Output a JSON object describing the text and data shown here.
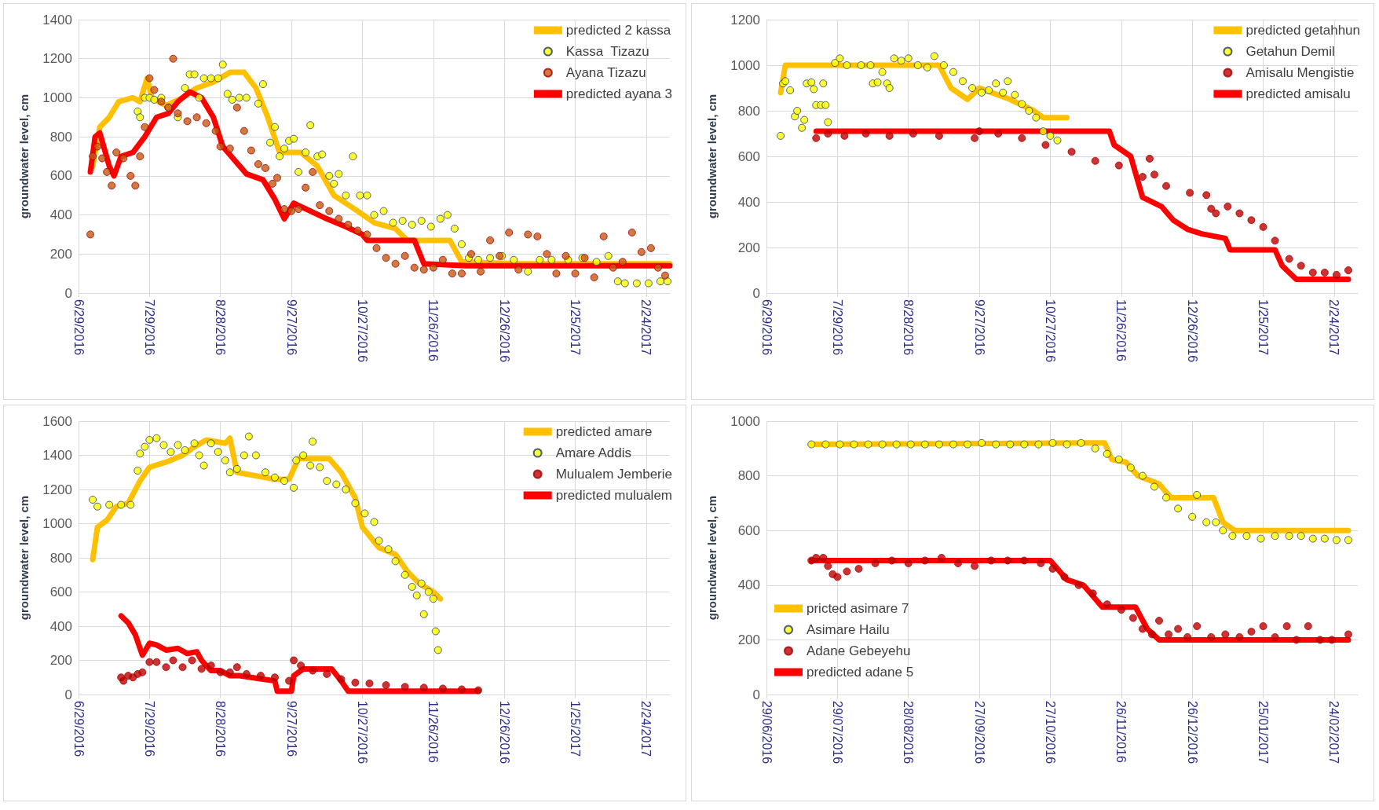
{
  "chart_data": [
    {
      "type": "scatter",
      "ylabel": "groundwater level, cm",
      "xlim": [
        "2016-06-29",
        "2017-03-06"
      ],
      "xticks": [
        {
          "value": "2016-06-29",
          "label": "6/29/2016"
        },
        {
          "value": "2016-07-29",
          "label": "7/29/2016"
        },
        {
          "value": "2016-08-28",
          "label": "8/28/2016"
        },
        {
          "value": "2016-09-27",
          "label": "9/27/2016"
        },
        {
          "value": "2016-10-27",
          "label": "10/27/2016"
        },
        {
          "value": "2016-11-26",
          "label": "11/26/2016"
        },
        {
          "value": "2016-12-26",
          "label": "12/26/2016"
        },
        {
          "value": "2017-01-25",
          "label": "1/25/2017"
        },
        {
          "value": "2017-02-24",
          "label": "2/24/2017"
        }
      ],
      "ylim": [
        0,
        1400
      ],
      "yticks": [
        0,
        200,
        400,
        600,
        800,
        1000,
        1200,
        1400
      ],
      "grid": true,
      "legend": "top right",
      "series": [
        {
          "name": "predicted 2 kassa",
          "type": "line",
          "marker": "none",
          "color": "#ffc000",
          "x": [
            "2016-07-05",
            "2016-07-08",
            "2016-07-12",
            "2016-07-16",
            "2016-07-22",
            "2016-07-25",
            "2016-07-28",
            "2016-07-30",
            "2016-08-05",
            "2016-08-12",
            "2016-08-18",
            "2016-08-25",
            "2016-09-01",
            "2016-09-07",
            "2016-09-12",
            "2016-09-17",
            "2016-09-22",
            "2016-10-01",
            "2016-10-08",
            "2016-10-15",
            "2016-10-25",
            "2016-11-01",
            "2016-11-10",
            "2016-11-15",
            "2016-12-03",
            "2016-12-08",
            "2017-01-01",
            "2017-02-05",
            "2017-03-06"
          ],
          "values": [
            650,
            850,
            900,
            980,
            1000,
            980,
            1100,
            1000,
            960,
            1000,
            1050,
            1080,
            1130,
            1130,
            1050,
            900,
            720,
            720,
            650,
            500,
            420,
            360,
            330,
            270,
            270,
            160,
            150,
            150,
            150
          ]
        },
        {
          "name": "Kassa  Tizazu",
          "marker": "circle",
          "color": "#ffff00",
          "x": [
            "2016-07-24",
            "2016-07-25",
            "2016-07-27",
            "2016-07-29",
            "2016-07-31",
            "2016-08-03",
            "2016-08-06",
            "2016-08-10",
            "2016-08-13",
            "2016-08-15",
            "2016-08-17",
            "2016-08-19",
            "2016-08-21",
            "2016-08-24",
            "2016-08-27",
            "2016-08-29",
            "2016-08-31",
            "2016-09-02",
            "2016-09-05",
            "2016-09-08",
            "2016-09-13",
            "2016-09-15",
            "2016-09-18",
            "2016-09-20",
            "2016-09-22",
            "2016-09-24",
            "2016-09-26",
            "2016-09-28",
            "2016-09-30",
            "2016-10-03",
            "2016-10-05",
            "2016-10-08",
            "2016-10-10",
            "2016-10-13",
            "2016-10-15",
            "2016-10-17",
            "2016-10-20",
            "2016-10-23",
            "2016-10-26",
            "2016-10-29",
            "2016-11-01",
            "2016-11-05",
            "2016-11-09",
            "2016-11-13",
            "2016-11-17",
            "2016-11-21",
            "2016-11-25",
            "2016-11-29",
            "2016-12-02",
            "2016-12-05",
            "2016-12-08",
            "2016-12-11",
            "2016-12-15",
            "2016-12-20",
            "2016-12-25",
            "2016-12-30",
            "2017-01-05",
            "2017-01-10",
            "2017-01-15",
            "2017-01-22",
            "2017-01-28",
            "2017-02-03",
            "2017-02-08",
            "2017-02-12",
            "2017-02-15",
            "2017-02-20",
            "2017-02-25",
            "2017-03-02",
            "2017-03-05"
          ],
          "values": [
            930,
            900,
            1000,
            1000,
            990,
            1000,
            950,
            900,
            1050,
            1120,
            1120,
            1000,
            1100,
            1100,
            1100,
            1170,
            1020,
            990,
            1000,
            1000,
            970,
            1070,
            770,
            850,
            700,
            740,
            780,
            790,
            620,
            720,
            860,
            700,
            710,
            600,
            560,
            610,
            500,
            700,
            500,
            500,
            400,
            420,
            360,
            370,
            350,
            370,
            340,
            380,
            400,
            330,
            250,
            180,
            170,
            180,
            190,
            170,
            110,
            170,
            170,
            170,
            180,
            160,
            190,
            60,
            50,
            50,
            50,
            60,
            60
          ]
        },
        {
          "name": "Ayana Tizazu",
          "marker": "circle",
          "color": "#c55a11",
          "x": [
            "2016-07-04",
            "2016-07-05",
            "2016-07-07",
            "2016-07-09",
            "2016-07-11",
            "2016-07-13",
            "2016-07-15",
            "2016-07-18",
            "2016-07-21",
            "2016-07-23",
            "2016-07-25",
            "2016-07-27",
            "2016-07-29",
            "2016-07-31",
            "2016-08-03",
            "2016-08-06",
            "2016-08-08",
            "2016-08-10",
            "2016-08-14",
            "2016-08-18",
            "2016-08-22",
            "2016-08-26",
            "2016-08-28",
            "2016-09-01",
            "2016-09-04",
            "2016-09-07",
            "2016-09-10",
            "2016-09-13",
            "2016-09-16",
            "2016-09-19",
            "2016-09-21",
            "2016-09-24",
            "2016-09-27",
            "2016-09-30",
            "2016-10-03",
            "2016-10-06",
            "2016-10-09",
            "2016-10-13",
            "2016-10-17",
            "2016-10-21",
            "2016-10-25",
            "2016-10-29",
            "2016-11-02",
            "2016-11-06",
            "2016-11-10",
            "2016-11-14",
            "2016-11-18",
            "2016-11-22",
            "2016-11-26",
            "2016-11-30",
            "2016-12-04",
            "2016-12-08",
            "2016-12-12",
            "2016-12-16",
            "2016-12-20",
            "2016-12-24",
            "2016-12-28",
            "2017-01-01",
            "2017-01-05",
            "2017-01-09",
            "2017-01-13",
            "2017-01-17",
            "2017-01-21",
            "2017-01-25",
            "2017-01-29",
            "2017-02-02",
            "2017-02-06",
            "2017-02-10",
            "2017-02-14",
            "2017-02-18",
            "2017-02-22",
            "2017-02-26",
            "2017-03-01",
            "2017-03-04"
          ],
          "values": [
            300,
            700,
            750,
            690,
            620,
            550,
            720,
            690,
            600,
            550,
            700,
            850,
            1100,
            1040,
            980,
            950,
            1200,
            920,
            880,
            900,
            870,
            830,
            750,
            740,
            950,
            830,
            730,
            660,
            640,
            560,
            590,
            430,
            420,
            430,
            540,
            620,
            450,
            420,
            380,
            350,
            320,
            300,
            230,
            180,
            150,
            190,
            130,
            120,
            130,
            170,
            100,
            100,
            200,
            110,
            270,
            190,
            310,
            120,
            300,
            290,
            200,
            100,
            190,
            100,
            180,
            80,
            290,
            130,
            160,
            310,
            210,
            230,
            130,
            90
          ]
        },
        {
          "name": "predicted ayana 3",
          "type": "line",
          "marker": "none",
          "color": "#ff0000",
          "x": [
            "2016-07-04",
            "2016-07-06",
            "2016-07-08",
            "2016-07-12",
            "2016-07-14",
            "2016-07-17",
            "2016-07-22",
            "2016-07-27",
            "2016-08-01",
            "2016-08-06",
            "2016-08-10",
            "2016-08-15",
            "2016-08-20",
            "2016-08-25",
            "2016-08-29",
            "2016-09-03",
            "2016-09-08",
            "2016-09-15",
            "2016-09-20",
            "2016-09-24",
            "2016-09-28",
            "2016-10-05",
            "2016-10-12",
            "2016-10-20",
            "2016-10-27",
            "2016-10-29",
            "2016-11-18",
            "2016-11-22",
            "2016-12-10",
            "2017-03-06"
          ],
          "values": [
            620,
            800,
            820,
            650,
            600,
            700,
            720,
            800,
            900,
            920,
            980,
            1030,
            1000,
            900,
            750,
            680,
            610,
            580,
            480,
            380,
            460,
            420,
            380,
            340,
            300,
            270,
            270,
            150,
            140,
            140
          ]
        }
      ]
    },
    {
      "type": "scatter",
      "ylabel": "groundwater level, cm",
      "xlim": [
        "2016-06-29",
        "2017-03-06"
      ],
      "xticks": [
        {
          "value": "2016-06-29",
          "label": "6/29/2016"
        },
        {
          "value": "2016-07-29",
          "label": "7/29/2016"
        },
        {
          "value": "2016-08-28",
          "label": "8/28/2016"
        },
        {
          "value": "2016-09-27",
          "label": "9/27/2016"
        },
        {
          "value": "2016-10-27",
          "label": "10/27/2016"
        },
        {
          "value": "2016-11-26",
          "label": "11/26/2016"
        },
        {
          "value": "2016-12-26",
          "label": "12/26/2016"
        },
        {
          "value": "2017-01-25",
          "label": "1/25/2017"
        },
        {
          "value": "2017-02-24",
          "label": "2/24/2017"
        }
      ],
      "ylim": [
        0,
        1200
      ],
      "yticks": [
        0,
        200,
        400,
        600,
        800,
        1000,
        1200
      ],
      "grid": true,
      "legend": "top right",
      "series": [
        {
          "name": "predicted getahhun",
          "type": "line",
          "marker": "none",
          "color": "#ffc000",
          "x": [
            "2016-07-05",
            "2016-07-07",
            "2016-08-25",
            "2016-09-10",
            "2016-09-15",
            "2016-09-22",
            "2016-09-27",
            "2016-10-10",
            "2016-10-20",
            "2016-10-24",
            "2016-11-03"
          ],
          "values": [
            880,
            1000,
            1000,
            1000,
            900,
            850,
            900,
            850,
            800,
            770,
            770
          ]
        },
        {
          "name": "Getahun Demil",
          "marker": "circle",
          "color": "#ffff00",
          "x": [
            "2016-07-05",
            "2016-07-06",
            "2016-07-07",
            "2016-07-09",
            "2016-07-11",
            "2016-07-12",
            "2016-07-14",
            "2016-07-15",
            "2016-07-16",
            "2016-07-18",
            "2016-07-19",
            "2016-07-20",
            "2016-07-22",
            "2016-07-23",
            "2016-07-24",
            "2016-07-25",
            "2016-07-28",
            "2016-07-30",
            "2016-08-02",
            "2016-08-08",
            "2016-08-12",
            "2016-08-13",
            "2016-08-15",
            "2016-08-17",
            "2016-08-19",
            "2016-08-20",
            "2016-08-22",
            "2016-08-25",
            "2016-08-28",
            "2016-09-01",
            "2016-09-05",
            "2016-09-08",
            "2016-09-12",
            "2016-09-16",
            "2016-09-20",
            "2016-09-24",
            "2016-09-28",
            "2016-10-01",
            "2016-10-04",
            "2016-10-07",
            "2016-10-09",
            "2016-10-12",
            "2016-10-15",
            "2016-10-18",
            "2016-10-21",
            "2016-10-24",
            "2016-10-27",
            "2016-10-30"
          ],
          "values": [
            690,
            920,
            930,
            890,
            775,
            800,
            725,
            760,
            920,
            925,
            895,
            825,
            825,
            920,
            825,
            750,
            1010,
            1030,
            1000,
            1000,
            1000,
            920,
            925,
            970,
            920,
            900,
            1030,
            1020,
            1030,
            1000,
            990,
            1040,
            1000,
            970,
            930,
            900,
            880,
            890,
            920,
            880,
            930,
            870,
            830,
            800,
            770,
            710,
            690,
            670
          ]
        },
        {
          "name": "Amisalu Mengistie",
          "marker": "circle",
          "color": "#c00000",
          "x": [
            "2016-07-20",
            "2016-07-25",
            "2016-08-01",
            "2016-08-10",
            "2016-08-20",
            "2016-08-30",
            "2016-09-10",
            "2016-09-25",
            "2016-09-27",
            "2016-10-05",
            "2016-10-15",
            "2016-10-25",
            "2016-11-05",
            "2016-11-15",
            "2016-11-25",
            "2016-12-05",
            "2016-12-08",
            "2016-12-10",
            "2016-12-15",
            "2016-12-25",
            "2017-01-01",
            "2017-01-03",
            "2017-01-05",
            "2017-01-10",
            "2017-01-15",
            "2017-01-20",
            "2017-01-25",
            "2017-01-30",
            "2017-02-05",
            "2017-02-10",
            "2017-02-15",
            "2017-02-20",
            "2017-02-25",
            "2017-03-02"
          ],
          "values": [
            680,
            700,
            690,
            700,
            690,
            700,
            690,
            680,
            710,
            700,
            680,
            650,
            620,
            580,
            560,
            510,
            590,
            520,
            470,
            440,
            430,
            370,
            350,
            380,
            350,
            320,
            290,
            230,
            150,
            120,
            90,
            90,
            80,
            100
          ]
        },
        {
          "name": "predicted amisalu",
          "type": "line",
          "marker": "none",
          "color": "#ff0000",
          "x": [
            "2016-07-20",
            "2016-11-21",
            "2016-11-23",
            "2016-11-30",
            "2016-12-05",
            "2016-12-13",
            "2016-12-18",
            "2016-12-24",
            "2016-12-30",
            "2017-01-09",
            "2017-01-11",
            "2017-01-30",
            "2017-02-02",
            "2017-02-08",
            "2017-03-02"
          ],
          "values": [
            710,
            710,
            650,
            600,
            420,
            380,
            320,
            280,
            260,
            240,
            190,
            190,
            120,
            60,
            60
          ]
        }
      ]
    },
    {
      "type": "scatter",
      "ylabel": "groundwater level, cm",
      "xlim": [
        "2016-06-29",
        "2017-03-06"
      ],
      "xticks": [
        {
          "value": "2016-06-29",
          "label": "6/29/2016"
        },
        {
          "value": "2016-07-29",
          "label": "7/29/2016"
        },
        {
          "value": "2016-08-28",
          "label": "8/28/2016"
        },
        {
          "value": "2016-09-27",
          "label": "9/27/2016"
        },
        {
          "value": "2016-10-27",
          "label": "10/27/2016"
        },
        {
          "value": "2016-11-26",
          "label": "11/26/2016"
        },
        {
          "value": "2016-12-26",
          "label": "12/26/2016"
        },
        {
          "value": "2017-01-25",
          "label": "1/25/2017"
        },
        {
          "value": "2017-02-24",
          "label": "2/24/2017"
        }
      ],
      "ylim": [
        0,
        1600
      ],
      "yticks": [
        0,
        200,
        400,
        600,
        800,
        1000,
        1200,
        1400,
        1600
      ],
      "grid": true,
      "legend": "top right",
      "series": [
        {
          "name": "predicted amare",
          "type": "line",
          "marker": "none",
          "color": "#ffc000",
          "x": [
            "2016-07-05",
            "2016-07-07",
            "2016-07-11",
            "2016-07-15",
            "2016-07-20",
            "2016-07-25",
            "2016-07-29",
            "2016-08-05",
            "2016-08-12",
            "2016-08-17",
            "2016-08-22",
            "2016-08-30",
            "2016-09-01",
            "2016-09-04",
            "2016-09-12",
            "2016-09-20",
            "2016-09-26",
            "2016-09-30",
            "2016-10-05",
            "2016-10-13",
            "2016-10-18",
            "2016-10-24",
            "2016-10-27",
            "2016-11-03",
            "2016-11-10",
            "2016-11-15",
            "2016-11-20",
            "2016-11-26",
            "2016-11-29"
          ],
          "values": [
            790,
            980,
            1020,
            1100,
            1120,
            1250,
            1330,
            1360,
            1400,
            1450,
            1490,
            1470,
            1500,
            1300,
            1280,
            1260,
            1260,
            1380,
            1380,
            1380,
            1300,
            1150,
            980,
            860,
            820,
            720,
            650,
            600,
            560
          ]
        },
        {
          "name": "Amare Addis",
          "marker": "circle",
          "color": "#ffff00",
          "x": [
            "2016-07-05",
            "2016-07-07",
            "2016-07-12",
            "2016-07-17",
            "2016-07-21",
            "2016-07-24",
            "2016-07-25",
            "2016-07-27",
            "2016-07-29",
            "2016-08-01",
            "2016-08-04",
            "2016-08-07",
            "2016-08-10",
            "2016-08-13",
            "2016-08-17",
            "2016-08-19",
            "2016-08-21",
            "2016-08-24",
            "2016-08-27",
            "2016-08-30",
            "2016-09-01",
            "2016-09-04",
            "2016-09-07",
            "2016-09-09",
            "2016-09-12",
            "2016-09-16",
            "2016-09-20",
            "2016-09-24",
            "2016-09-28",
            "2016-09-29",
            "2016-10-02",
            "2016-10-05",
            "2016-10-06",
            "2016-10-09",
            "2016-10-12",
            "2016-10-16",
            "2016-10-20",
            "2016-10-24",
            "2016-10-28",
            "2016-11-01",
            "2016-11-03",
            "2016-11-07",
            "2016-11-10",
            "2016-11-14",
            "2016-11-17",
            "2016-11-19",
            "2016-11-21",
            "2016-11-22",
            "2016-11-24",
            "2016-11-26",
            "2016-11-27",
            "2016-11-28"
          ],
          "values": [
            1140,
            1100,
            1110,
            1110,
            1110,
            1310,
            1410,
            1450,
            1490,
            1500,
            1460,
            1420,
            1460,
            1430,
            1470,
            1400,
            1340,
            1470,
            1420,
            1370,
            1300,
            1320,
            1400,
            1510,
            1400,
            1300,
            1270,
            1250,
            1210,
            1370,
            1400,
            1340,
            1480,
            1330,
            1250,
            1230,
            1200,
            1120,
            1060,
            1010,
            900,
            850,
            780,
            700,
            630,
            580,
            650,
            470,
            600,
            560,
            370,
            260
          ]
        },
        {
          "name": "Mulualem Jemberie",
          "marker": "circle",
          "color": "#c00000",
          "x": [
            "2016-07-17",
            "2016-07-18",
            "2016-07-20",
            "2016-07-22",
            "2016-07-24",
            "2016-07-26",
            "2016-07-29",
            "2016-08-01",
            "2016-08-05",
            "2016-08-08",
            "2016-08-12",
            "2016-08-16",
            "2016-08-20",
            "2016-08-24",
            "2016-08-28",
            "2016-09-01",
            "2016-09-04",
            "2016-09-08",
            "2016-09-14",
            "2016-09-20",
            "2016-09-26",
            "2016-09-28",
            "2016-10-01",
            "2016-10-06",
            "2016-10-12",
            "2016-10-18",
            "2016-10-24",
            "2016-10-30",
            "2016-11-06",
            "2016-11-14",
            "2016-11-22",
            "2016-11-30",
            "2016-12-08",
            "2016-12-15"
          ],
          "values": [
            100,
            80,
            110,
            100,
            120,
            130,
            190,
            190,
            160,
            200,
            160,
            200,
            150,
            170,
            130,
            130,
            160,
            120,
            110,
            100,
            80,
            200,
            170,
            140,
            120,
            90,
            70,
            65,
            55,
            45,
            40,
            35,
            30,
            25
          ]
        },
        {
          "name": "predicted mulualem",
          "type": "line",
          "marker": "none",
          "color": "#ff0000",
          "x": [
            "2016-07-17",
            "2016-07-20",
            "2016-07-23",
            "2016-07-26",
            "2016-07-29",
            "2016-08-01",
            "2016-08-05",
            "2016-08-10",
            "2016-08-14",
            "2016-08-18",
            "2016-08-20",
            "2016-08-24",
            "2016-08-28",
            "2016-09-01",
            "2016-09-05",
            "2016-09-15",
            "2016-09-20",
            "2016-09-21",
            "2016-09-27",
            "2016-09-28",
            "2016-10-02",
            "2016-10-14",
            "2016-10-18",
            "2016-10-21",
            "2016-12-15"
          ],
          "values": [
            460,
            420,
            350,
            230,
            300,
            290,
            260,
            270,
            240,
            250,
            200,
            140,
            140,
            110,
            110,
            90,
            80,
            20,
            20,
            110,
            150,
            150,
            80,
            20,
            20
          ]
        }
      ]
    },
    {
      "type": "scatter",
      "ylabel": "groundwater level, cm",
      "xlim": [
        "2016-06-29",
        "2017-03-06"
      ],
      "xticks": [
        {
          "value": "2016-06-29",
          "label": "29/06/2016"
        },
        {
          "value": "2016-07-29",
          "label": "29/07/2016"
        },
        {
          "value": "2016-08-28",
          "label": "28/08/2016"
        },
        {
          "value": "2016-09-27",
          "label": "27/09/2016"
        },
        {
          "value": "2016-10-27",
          "label": "27/10/2016"
        },
        {
          "value": "2016-11-26",
          "label": "26/11/2016"
        },
        {
          "value": "2016-12-26",
          "label": "26/12/2016"
        },
        {
          "value": "2017-01-25",
          "label": "25/01/2017"
        },
        {
          "value": "2017-02-24",
          "label": "24/02/2017"
        }
      ],
      "ylim": [
        0,
        1000
      ],
      "yticks": [
        0,
        200,
        400,
        600,
        800,
        1000
      ],
      "grid": true,
      "legend": "bottom left",
      "series": [
        {
          "name": "pricted asimare 7",
          "type": "line",
          "marker": "none",
          "color": "#ffc000",
          "x": [
            "2016-07-18",
            "2016-11-11",
            "2016-11-19",
            "2016-11-22",
            "2016-11-28",
            "2016-12-03",
            "2016-12-12",
            "2016-12-17",
            "2017-01-04",
            "2017-01-08",
            "2017-01-13",
            "2017-03-02"
          ],
          "values": [
            915,
            920,
            920,
            860,
            850,
            800,
            770,
            720,
            720,
            630,
            600,
            600
          ]
        },
        {
          "name": "Asimare Hailu",
          "marker": "circle",
          "color": "#ffff00",
          "x": [
            "2016-07-18",
            "2016-07-24",
            "2016-07-30",
            "2016-08-05",
            "2016-08-11",
            "2016-08-17",
            "2016-08-23",
            "2016-08-29",
            "2016-09-04",
            "2016-09-10",
            "2016-09-16",
            "2016-09-22",
            "2016-09-28",
            "2016-10-04",
            "2016-10-10",
            "2016-10-16",
            "2016-10-22",
            "2016-10-28",
            "2016-11-03",
            "2016-11-09",
            "2016-11-15",
            "2016-11-20",
            "2016-11-25",
            "2016-11-30",
            "2016-12-05",
            "2016-12-10",
            "2016-12-15",
            "2016-12-20",
            "2016-12-26",
            "2016-12-28",
            "2017-01-01",
            "2017-01-05",
            "2017-01-08",
            "2017-01-12",
            "2017-01-18",
            "2017-01-24",
            "2017-01-30",
            "2017-02-05",
            "2017-02-10",
            "2017-02-15",
            "2017-02-20",
            "2017-02-25",
            "2017-03-02"
          ],
          "values": [
            915,
            915,
            915,
            915,
            915,
            915,
            915,
            915,
            915,
            915,
            915,
            915,
            920,
            915,
            915,
            915,
            915,
            920,
            915,
            920,
            900,
            880,
            860,
            830,
            800,
            760,
            720,
            680,
            650,
            730,
            630,
            630,
            600,
            580,
            580,
            570,
            580,
            580,
            580,
            570,
            570,
            565,
            565
          ]
        },
        {
          "name": "Adane Gebeyehu",
          "marker": "circle",
          "color": "#c00000",
          "x": [
            "2016-07-18",
            "2016-07-20",
            "2016-07-23",
            "2016-07-25",
            "2016-07-27",
            "2016-07-29",
            "2016-08-02",
            "2016-08-07",
            "2016-08-14",
            "2016-08-21",
            "2016-08-28",
            "2016-09-04",
            "2016-09-11",
            "2016-09-18",
            "2016-09-25",
            "2016-10-02",
            "2016-10-09",
            "2016-10-16",
            "2016-10-23",
            "2016-10-28",
            "2016-11-02",
            "2016-11-08",
            "2016-11-14",
            "2016-11-20",
            "2016-11-26",
            "2016-12-01",
            "2016-12-05",
            "2016-12-09",
            "2016-12-12",
            "2016-12-16",
            "2016-12-20",
            "2016-12-24",
            "2016-12-28",
            "2017-01-03",
            "2017-01-09",
            "2017-01-15",
            "2017-01-20",
            "2017-01-25",
            "2017-01-30",
            "2017-02-04",
            "2017-02-08",
            "2017-02-13",
            "2017-02-18",
            "2017-02-23",
            "2017-03-02"
          ],
          "values": [
            490,
            500,
            500,
            470,
            440,
            430,
            450,
            460,
            480,
            490,
            480,
            490,
            500,
            480,
            470,
            490,
            490,
            490,
            480,
            460,
            430,
            400,
            370,
            330,
            310,
            280,
            240,
            220,
            270,
            220,
            240,
            210,
            250,
            210,
            220,
            210,
            230,
            250,
            210,
            250,
            200,
            250,
            200,
            200,
            220
          ]
        },
        {
          "name": "predicted adane 5",
          "type": "line",
          "marker": "none",
          "color": "#ff0000",
          "x": [
            "2016-07-18",
            "2016-10-27",
            "2016-11-03",
            "2016-11-10",
            "2016-11-18",
            "2016-12-02",
            "2016-12-07",
            "2016-12-12",
            "2017-03-02"
          ],
          "values": [
            490,
            490,
            420,
            400,
            320,
            320,
            240,
            200,
            200
          ]
        }
      ]
    }
  ]
}
